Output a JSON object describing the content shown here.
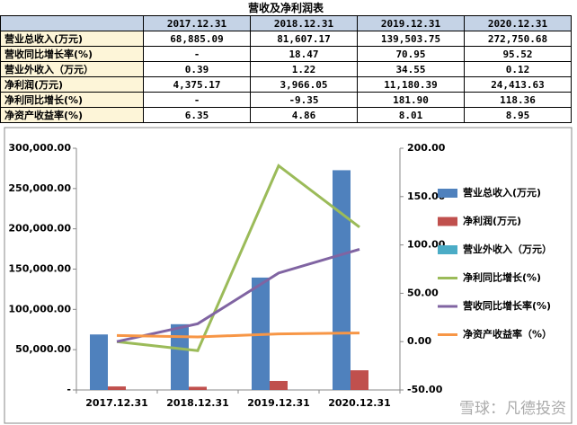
{
  "table": {
    "title": "营收及净利润表",
    "header": [
      "2017.12.31",
      "2018.12.31",
      "2019.12.31",
      "2020.12.31"
    ],
    "rows": [
      [
        "营业总收入(万元)",
        "68,885.09",
        "81,607.17",
        "139,503.75",
        "272,750.68"
      ],
      [
        "营收同比增长率(%)",
        "-",
        "18.47",
        "70.95",
        "95.52"
      ],
      [
        "营业外收入（万元）",
        "0.39",
        "1.22",
        "34.55",
        "0.12"
      ],
      [
        "净利润(万元)",
        "4,375.17",
        "3,966.05",
        "11,180.39",
        "24,413.63"
      ],
      [
        "净利同比增长(%)",
        "-",
        "-9.35",
        "181.90",
        "118.36"
      ],
      [
        "净资产收益率(%)",
        "6.35",
        "4.86",
        "8.01",
        "8.95"
      ]
    ]
  },
  "chart_data": {
    "type": "bar-line",
    "categories": [
      "2017.12.31",
      "2018.12.31",
      "2019.12.31",
      "2020.12.31"
    ],
    "series": [
      {
        "name": "营业总收入(万元)",
        "type": "bar",
        "color": "#4f81bd",
        "values": [
          68885.09,
          81607.17,
          139503.75,
          272750.68
        ]
      },
      {
        "name": "净利润(万元)",
        "type": "bar",
        "color": "#c0504d",
        "values": [
          4375.17,
          3966.05,
          11180.39,
          24413.63
        ]
      },
      {
        "name": "营业外收入（万元）",
        "type": "bar",
        "color": "#4bacc6",
        "values": [
          0.39,
          1.22,
          34.55,
          0.12
        ]
      },
      {
        "name": "净利同比增长(%)",
        "type": "line",
        "axis": "y2",
        "color": "#9bbb59",
        "values": [
          0,
          -9.35,
          181.9,
          118.36
        ]
      },
      {
        "name": "营收同比增长率(%)",
        "type": "line",
        "axis": "y2",
        "color": "#8064a2",
        "values": [
          0,
          18.47,
          70.95,
          95.52
        ]
      },
      {
        "name": "净资产收益率（%）",
        "type": "line",
        "axis": "y2",
        "color": "#f79646",
        "values": [
          6.35,
          4.86,
          8.01,
          8.95
        ]
      }
    ],
    "ylim": [
      0,
      300000
    ],
    "yticks": [
      {
        "value": 0,
        "label": "-"
      },
      {
        "value": 50000,
        "label": "50,000.00"
      },
      {
        "value": 100000,
        "label": "100,000.00"
      },
      {
        "value": 150000,
        "label": "150,000.00"
      },
      {
        "value": 200000,
        "label": "200,000.00"
      },
      {
        "value": 250000,
        "label": "250,000.00"
      },
      {
        "value": 300000,
        "label": "300,000.00"
      }
    ],
    "y2lim": [
      -50,
      200
    ],
    "y2ticks": [
      {
        "value": -50,
        "label": "-50.00"
      },
      {
        "value": 0,
        "label": "0.00"
      },
      {
        "value": 50,
        "label": "50.00"
      },
      {
        "value": 100,
        "label": "100.00"
      },
      {
        "value": 150,
        "label": "150.00"
      },
      {
        "value": 200,
        "label": "200.00"
      }
    ],
    "legend": "right",
    "grid": false
  },
  "watermark": "雪球：凡德投资"
}
